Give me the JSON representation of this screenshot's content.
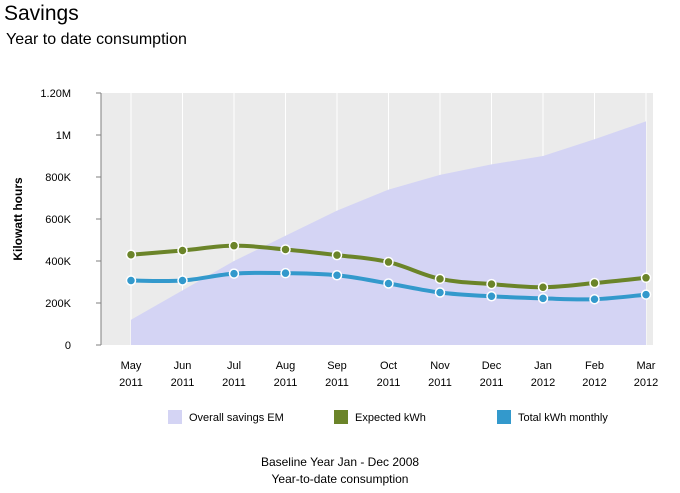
{
  "header": {
    "title": "Savings",
    "subtitle": "Year to date consumption"
  },
  "footer": {
    "line1": "Baseline Year Jan - Dec 2008",
    "line2": "Year-to-date consumption"
  },
  "chart_data": {
    "type": "line",
    "ylabel": "Kilowatt hours",
    "xlabel": "",
    "ylim": [
      0,
      1200000
    ],
    "yticks": [
      {
        "value": 0,
        "label": "0"
      },
      {
        "value": 200000,
        "label": "200K"
      },
      {
        "value": 400000,
        "label": "400K"
      },
      {
        "value": 600000,
        "label": "600K"
      },
      {
        "value": 800000,
        "label": "800K"
      },
      {
        "value": 1000000,
        "label": "1M"
      },
      {
        "value": 1200000,
        "label": "1.20M"
      }
    ],
    "categories": [
      {
        "month": "May",
        "year": "2011"
      },
      {
        "month": "Jun",
        "year": "2011"
      },
      {
        "month": "Jul",
        "year": "2011"
      },
      {
        "month": "Aug",
        "year": "2011"
      },
      {
        "month": "Sep",
        "year": "2011"
      },
      {
        "month": "Oct",
        "year": "2011"
      },
      {
        "month": "Nov",
        "year": "2011"
      },
      {
        "month": "Dec",
        "year": "2011"
      },
      {
        "month": "Jan",
        "year": "2012"
      },
      {
        "month": "Feb",
        "year": "2012"
      },
      {
        "month": "Mar",
        "year": "2012"
      }
    ],
    "grid": "vertical",
    "legend_position": "bottom",
    "series": [
      {
        "name": "Overall savings EM",
        "kind": "area",
        "color": "#d4d4f4",
        "values": [
          120000,
          260000,
          400000,
          520000,
          640000,
          740000,
          810000,
          860000,
          900000,
          980000,
          1065000
        ]
      },
      {
        "name": "Expected kWh",
        "kind": "line",
        "color": "#6b8429",
        "values": [
          430000,
          450000,
          473000,
          455000,
          428000,
          395000,
          315000,
          290000,
          275000,
          295000,
          320000
        ]
      },
      {
        "name": "Total kWh monthly",
        "kind": "line",
        "color": "#3399cc",
        "values": [
          307000,
          307000,
          340000,
          342000,
          332000,
          293000,
          250000,
          232000,
          222000,
          218000,
          240000
        ]
      }
    ]
  }
}
